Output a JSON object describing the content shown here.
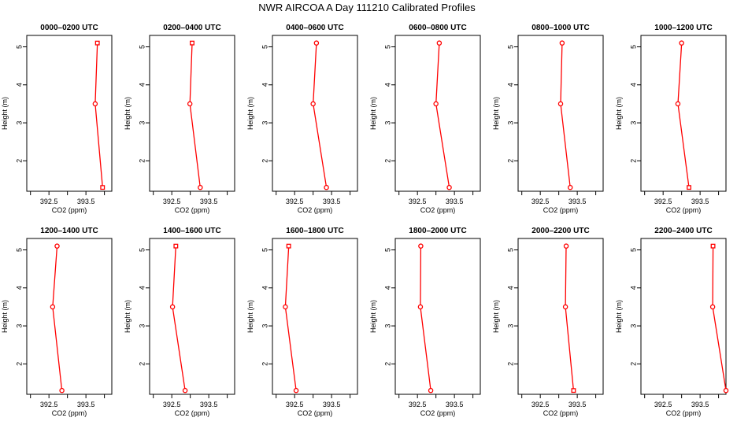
{
  "title": "NWR AIRCOA A  Day 111210  Calibrated Profiles",
  "colors": {
    "series": "#ff0000",
    "axis": "#000000",
    "background": "#ffffff"
  },
  "chart_data": [
    {
      "type": "line",
      "title": "0000–0200 UTC",
      "xlabel": "CO2 (ppm)",
      "ylabel": "Height (m)",
      "xlim": [
        391.9,
        394.2
      ],
      "ylim": [
        1.2,
        5.3
      ],
      "xticks": [
        "392.5",
        "393.5"
      ],
      "yticks": [
        "2",
        "3",
        "4",
        "5"
      ],
      "x": [
        393.81,
        393.75,
        393.95
      ],
      "y": [
        5.1,
        3.5,
        1.3
      ],
      "markers": [
        "square",
        "circle",
        "square"
      ]
    },
    {
      "type": "line",
      "title": "0200–0400 UTC",
      "xlabel": "CO2 (ppm)",
      "ylabel": "Height (m)",
      "xlim": [
        391.9,
        394.2
      ],
      "ylim": [
        1.2,
        5.3
      ],
      "xticks": [
        "392.5",
        "393.5"
      ],
      "yticks": [
        "2",
        "3",
        "4",
        "5"
      ],
      "x": [
        393.05,
        392.99,
        393.27
      ],
      "y": [
        5.1,
        3.5,
        1.3
      ],
      "markers": [
        "square",
        "circle",
        "circle"
      ]
    },
    {
      "type": "line",
      "title": "0400–0600 UTC",
      "xlabel": "CO2 (ppm)",
      "ylabel": "Height (m)",
      "xlim": [
        391.9,
        394.2
      ],
      "ylim": [
        1.2,
        5.3
      ],
      "xticks": [
        "392.5",
        "393.5"
      ],
      "yticks": [
        "2",
        "3",
        "4",
        "5"
      ],
      "x": [
        393.09,
        393.0,
        393.36
      ],
      "y": [
        5.1,
        3.5,
        1.3
      ],
      "markers": [
        "circle",
        "circle",
        "circle"
      ]
    },
    {
      "type": "line",
      "title": "0600–0800 UTC",
      "xlabel": "CO2 (ppm)",
      "ylabel": "Height (m)",
      "xlim": [
        391.9,
        394.2
      ],
      "ylim": [
        1.2,
        5.3
      ],
      "xticks": [
        "392.5",
        "393.5"
      ],
      "yticks": [
        "2",
        "3",
        "4",
        "5"
      ],
      "x": [
        393.09,
        393.0,
        393.36
      ],
      "y": [
        5.1,
        3.5,
        1.3
      ],
      "markers": [
        "circle",
        "circle",
        "circle"
      ]
    },
    {
      "type": "line",
      "title": "0800–1000 UTC",
      "xlabel": "CO2 (ppm)",
      "ylabel": "Height (m)",
      "xlim": [
        391.9,
        394.2
      ],
      "ylim": [
        1.2,
        5.3
      ],
      "xticks": [
        "392.5",
        "393.5"
      ],
      "yticks": [
        "2",
        "3",
        "4",
        "5"
      ],
      "x": [
        393.09,
        393.05,
        393.31
      ],
      "y": [
        5.1,
        3.5,
        1.3
      ],
      "markers": [
        "circle",
        "circle",
        "circle"
      ]
    },
    {
      "type": "line",
      "title": "1000–1200 UTC",
      "xlabel": "CO2 (ppm)",
      "ylabel": "Height (m)",
      "xlim": [
        391.9,
        394.2
      ],
      "ylim": [
        1.2,
        5.3
      ],
      "xticks": [
        "392.5",
        "393.5"
      ],
      "yticks": [
        "2",
        "3",
        "4",
        "5"
      ],
      "x": [
        393.0,
        392.9,
        393.2
      ],
      "y": [
        5.1,
        3.5,
        1.3
      ],
      "markers": [
        "circle",
        "circle",
        "square"
      ]
    },
    {
      "type": "line",
      "title": "1200–1400 UTC",
      "xlabel": "CO2 (ppm)",
      "ylabel": "Height (m)",
      "xlim": [
        391.9,
        394.2
      ],
      "ylim": [
        1.2,
        5.3
      ],
      "xticks": [
        "392.5",
        "393.5"
      ],
      "yticks": [
        "2",
        "3",
        "4",
        "5"
      ],
      "x": [
        392.72,
        392.6,
        392.85
      ],
      "y": [
        5.1,
        3.5,
        1.3
      ],
      "markers": [
        "circle",
        "circle",
        "circle"
      ]
    },
    {
      "type": "line",
      "title": "1400–1600 UTC",
      "xlabel": "CO2 (ppm)",
      "ylabel": "Height (m)",
      "xlim": [
        391.9,
        394.2
      ],
      "ylim": [
        1.2,
        5.3
      ],
      "xticks": [
        "392.5",
        "393.5"
      ],
      "yticks": [
        "2",
        "3",
        "4",
        "5"
      ],
      "x": [
        392.61,
        392.52,
        392.86
      ],
      "y": [
        5.1,
        3.5,
        1.3
      ],
      "markers": [
        "square",
        "circle",
        "circle"
      ]
    },
    {
      "type": "line",
      "title": "1600–1800 UTC",
      "xlabel": "CO2 (ppm)",
      "ylabel": "Height (m)",
      "xlim": [
        391.9,
        394.2
      ],
      "ylim": [
        1.2,
        5.3
      ],
      "xticks": [
        "392.5",
        "393.5"
      ],
      "yticks": [
        "2",
        "3",
        "4",
        "5"
      ],
      "x": [
        392.34,
        392.25,
        392.54
      ],
      "y": [
        5.1,
        3.5,
        1.3
      ],
      "markers": [
        "square",
        "circle",
        "circle"
      ]
    },
    {
      "type": "line",
      "title": "1800–2000 UTC",
      "xlabel": "CO2 (ppm)",
      "ylabel": "Height (m)",
      "xlim": [
        391.9,
        394.2
      ],
      "ylim": [
        1.2,
        5.3
      ],
      "xticks": [
        "392.5",
        "393.5"
      ],
      "yticks": [
        "2",
        "3",
        "4",
        "5"
      ],
      "x": [
        392.59,
        392.58,
        392.86
      ],
      "y": [
        5.1,
        3.5,
        1.3
      ],
      "markers": [
        "circle",
        "circle",
        "circle"
      ]
    },
    {
      "type": "line",
      "title": "2000–2200 UTC",
      "xlabel": "CO2 (ppm)",
      "ylabel": "Height (m)",
      "xlim": [
        391.9,
        394.2
      ],
      "ylim": [
        1.2,
        5.3
      ],
      "xticks": [
        "392.5",
        "393.5"
      ],
      "yticks": [
        "2",
        "3",
        "4",
        "5"
      ],
      "x": [
        393.2,
        393.18,
        393.4
      ],
      "y": [
        5.1,
        3.5,
        1.3
      ],
      "markers": [
        "circle",
        "circle",
        "square"
      ]
    },
    {
      "type": "line",
      "title": "2200–2400 UTC",
      "xlabel": "CO2 (ppm)",
      "ylabel": "Height (m)",
      "xlim": [
        391.9,
        394.2
      ],
      "ylim": [
        1.2,
        5.3
      ],
      "xticks": [
        "392.5",
        "393.5"
      ],
      "yticks": [
        "2",
        "3",
        "4",
        "5"
      ],
      "x": [
        393.85,
        393.84,
        394.2
      ],
      "y": [
        5.1,
        3.5,
        1.3
      ],
      "markers": [
        "square",
        "circle",
        "circle"
      ]
    }
  ]
}
